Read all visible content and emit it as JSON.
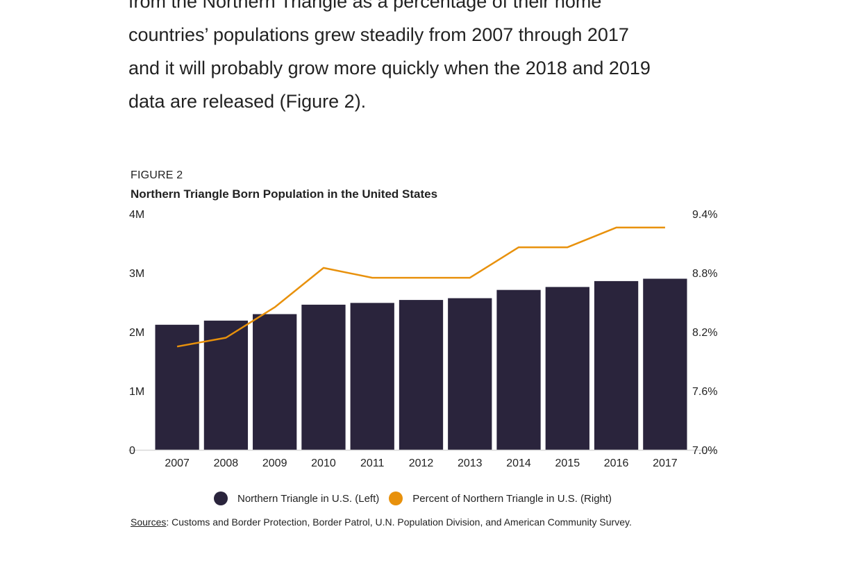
{
  "article": {
    "lines": [
      "from the Northern Triangle as a percentage of their home",
      "countries’ populations grew steadily from 2007 through 2017",
      "and it will probably grow more quickly when the 2018 and 2019",
      "data are released (Figure 2)."
    ]
  },
  "figure": {
    "label": "FIGURE 2",
    "title": "Northern Triangle Born Population in the United States"
  },
  "chart_data": {
    "type": "bar",
    "categories": [
      "2007",
      "2008",
      "2009",
      "2010",
      "2011",
      "2012",
      "2013",
      "2014",
      "2015",
      "2016",
      "2017"
    ],
    "series": [
      {
        "name": "Northern Triangle in U.S. (Left)",
        "type": "bar",
        "axis": "left",
        "color": "#2a243c",
        "values": [
          2.12,
          2.19,
          2.3,
          2.46,
          2.49,
          2.54,
          2.57,
          2.71,
          2.76,
          2.86,
          2.9
        ]
      },
      {
        "name": "Percent of Northern Triangle in U.S. (Right)",
        "type": "line",
        "axis": "right",
        "color": "#e8910c",
        "values": [
          8.05,
          8.14,
          8.45,
          8.85,
          8.75,
          8.75,
          8.75,
          9.06,
          9.06,
          9.26,
          9.26
        ]
      }
    ],
    "left_axis": {
      "min": 0,
      "max": 4,
      "ticks": [
        "0",
        "1M",
        "2M",
        "3M",
        "4M"
      ]
    },
    "right_axis": {
      "min": 7.0,
      "max": 9.4,
      "ticks": [
        "7.0%",
        "7.6%",
        "8.2%",
        "8.8%",
        "9.4%"
      ]
    },
    "grid": false,
    "legend_position": "bottom"
  },
  "legend": [
    {
      "label": "Northern Triangle in U.S. (Left)",
      "color": "#2a243c"
    },
    {
      "label": "Percent of Northern Triangle in U.S. (Right)",
      "color": "#e8910c"
    }
  ],
  "sources": {
    "link_text": "Sources",
    "text": ": Customs and Border Protection, Border Patrol, U.N. Population Division, and American Community Survey."
  }
}
